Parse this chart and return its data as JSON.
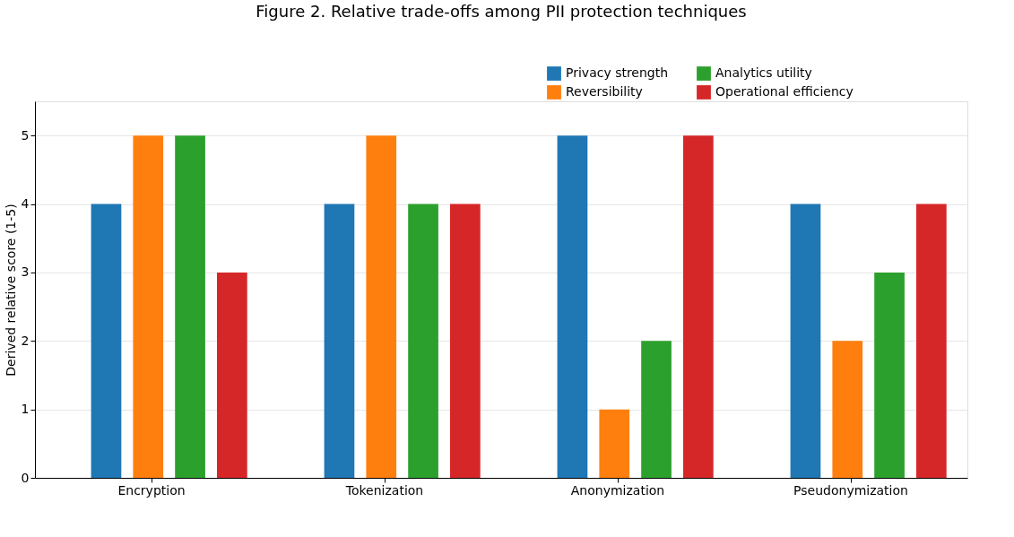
{
  "chart_data": {
    "type": "bar",
    "title": "Figure 2. Relative trade-offs among PII protection techniques",
    "ylabel": "Derived relative score (1-5)",
    "categories": [
      "Encryption",
      "Tokenization",
      "Anonymization",
      "Pseudonymization"
    ],
    "series": [
      {
        "name": "Privacy strength",
        "color": "#1f77b4",
        "values": [
          4,
          4,
          5,
          4
        ]
      },
      {
        "name": "Reversibility",
        "color": "#ff7f0e",
        "values": [
          5,
          5,
          1,
          2
        ]
      },
      {
        "name": "Analytics utility",
        "color": "#2ca02c",
        "values": [
          5,
          4,
          2,
          3
        ]
      },
      {
        "name": "Operational efficiency",
        "color": "#d62728",
        "values": [
          3,
          4,
          5,
          4
        ]
      }
    ],
    "ylim": [
      0,
      5.5
    ],
    "yticks": [
      0,
      1,
      2,
      3,
      4,
      5
    ],
    "grid": "y",
    "legend": "top right"
  }
}
